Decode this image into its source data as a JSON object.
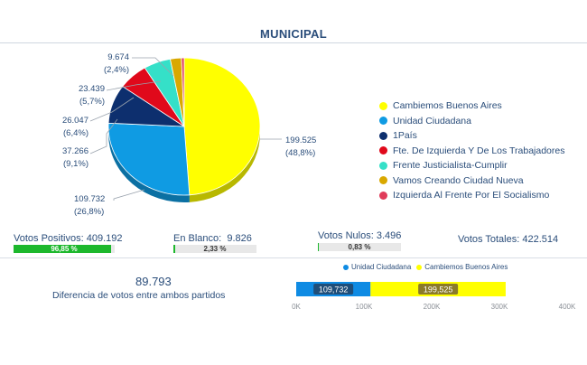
{
  "title": "MUNICIPAL",
  "parties": [
    {
      "name": "Cambiemos Buenos Aires",
      "color": "#ffff00",
      "votes": 199525,
      "votes_label": "199.525",
      "pct_label": "(48,8%)"
    },
    {
      "name": "Unidad Ciudadana",
      "color": "#0f9be3",
      "votes": 109732,
      "votes_label": "109.732",
      "pct_label": "(26,8%)"
    },
    {
      "name": "1País",
      "color": "#0d2f6e",
      "votes": 37266,
      "votes_label": "37.266",
      "pct_label": "(9,1%)"
    },
    {
      "name": "Fte. De Izquierda Y De Los Trabajadores",
      "color": "#e0091b",
      "votes": 26047,
      "votes_label": "26.047",
      "pct_label": "(6,4%)"
    },
    {
      "name": "Frente Justicialista-Cumplir",
      "color": "#35e0c8",
      "votes": 23439,
      "votes_label": "23.439",
      "pct_label": "(5,7%)"
    },
    {
      "name": "Vamos Creando Ciudad Nueva",
      "color": "#d9a800",
      "votes": 9674,
      "votes_label": "9.674",
      "pct_label": "(2,4%)"
    },
    {
      "name": "Izquierda Al Frente Por El Socialismo",
      "color": "#e03c5a",
      "votes": 2400,
      "votes_label": "",
      "pct_label": ""
    }
  ],
  "stats": {
    "positivos_label": "Votos Positivos:",
    "positivos_value": "409.192",
    "positivos_pct": "96,85 %",
    "positivos_fill": 0.9685,
    "blanco_label": "En Blanco:",
    "blanco_value": "9.826",
    "blanco_pct": "2,33 %",
    "blanco_fill": 0.0233,
    "nulos_label": "Votos Nulos:",
    "nulos_value": "3.496",
    "nulos_pct": "0,83 %",
    "nulos_fill": 0.0083,
    "totales_label": "Votos Totales:",
    "totales_value": "422.514"
  },
  "difference": {
    "value": "89.793",
    "label": "Diferencia de votos entre ambos partidos"
  },
  "comparison": {
    "legend": [
      {
        "name": "Unidad Ciudadana",
        "color": "#0f8be3"
      },
      {
        "name": "Cambiemos Buenos Aires",
        "color": "#ffff00"
      }
    ],
    "axis_ticks": [
      "0K",
      "100K",
      "200K",
      "300K",
      "400K"
    ]
  },
  "chart_data": [
    {
      "type": "pie",
      "title": "",
      "categories": [
        "Cambiemos Buenos Aires",
        "Unidad Ciudadana",
        "1País",
        "Fte. De Izquierda Y De Los Trabajadores",
        "Frente Justicialista-Cumplir",
        "Vamos Creando Ciudad Nueva",
        "Izquierda Al Frente Por El Socialismo"
      ],
      "values": [
        199525,
        109732,
        37266,
        26047,
        23439,
        9674,
        2400
      ],
      "percent_labels": [
        "48,8%",
        "26,8%",
        "9,1%",
        "6,4%",
        "5,7%",
        "2,4%",
        ""
      ],
      "legend": "right"
    },
    {
      "type": "bar",
      "orientation": "horizontal",
      "stacked": true,
      "series": [
        {
          "name": "Unidad Ciudadana",
          "values": [
            109732
          ],
          "data_label": "109,732"
        },
        {
          "name": "Cambiemos Buenos Aires",
          "values": [
            199525
          ],
          "data_label": "199,525"
        }
      ],
      "xlim": [
        0,
        400000
      ],
      "xticks": [
        "0K",
        "100K",
        "200K",
        "300K",
        "400K"
      ],
      "legend": "top"
    }
  ]
}
